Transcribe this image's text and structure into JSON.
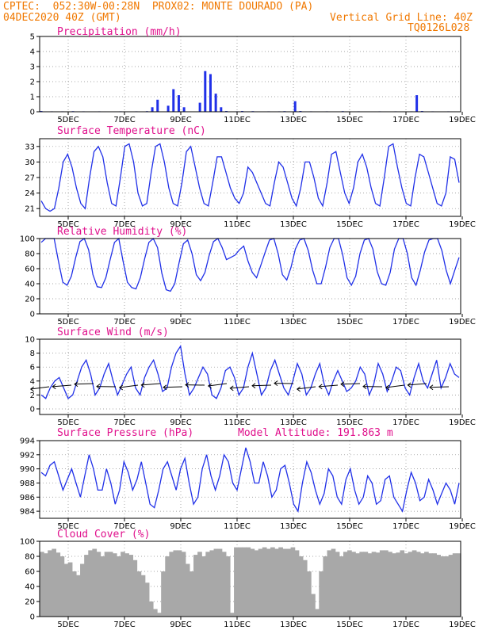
{
  "header": {
    "line1": "CPTEC:  052:30W-00:28N  PROX02: MONTE DOURADO (PA)",
    "line2_left": "04DEC2020 40Z (GMT)",
    "line2_right": "Vertical Grid Line: 40Z",
    "line3_right": "TQ0126L028"
  },
  "colors": {
    "header": "#f07800",
    "title": "#e0108c",
    "line": "#2030e8",
    "cloud": "#a8a8a8"
  },
  "x_axis": {
    "labels": [
      "5DEC",
      "7DEC",
      "9DEC",
      "11DEC",
      "13DEC",
      "15DEC",
      "17DEC",
      "19DEC"
    ]
  },
  "chart_data": [
    {
      "type": "bar",
      "title": "Precipitation (mm/h)",
      "ylim": [
        0,
        5
      ],
      "yticks": [
        0,
        1,
        2,
        3,
        4,
        5
      ],
      "series": [
        {
          "values": [
            0.05,
            0.02,
            0.03,
            0.02,
            0.03,
            0.02,
            0.04,
            0.02,
            0.03,
            0.02,
            0.02,
            0.03,
            0.02,
            0.02,
            0.02,
            0.03,
            0.02,
            0.02,
            0.03,
            0.02,
            0.04,
            0.3,
            0.8,
            0.02,
            0.4,
            1.5,
            1.1,
            0.3,
            0.02,
            0.02,
            0.6,
            2.7,
            2.5,
            1.2,
            0.3,
            0.05,
            0.02,
            0.03,
            0.05,
            0.02,
            0.04,
            0.02,
            0.02,
            0.03,
            0.02,
            0.03,
            0.04,
            0.02,
            0.7,
            0.05,
            0.02,
            0.03,
            0.02,
            0.02,
            0.03,
            0.02,
            0.02,
            0.04,
            0.02,
            0.02,
            0.03,
            0.02,
            0.02,
            0.02,
            0.03,
            0.02,
            0.02,
            0.03,
            0.02,
            0.02,
            0.03,
            1.1,
            0.05,
            0.02,
            0.03,
            0.02,
            0.02,
            0.03,
            0.02,
            0.02
          ]
        }
      ]
    },
    {
      "type": "line",
      "title": "Surface Temperature (nC)",
      "ylim": [
        19.5,
        34.5
      ],
      "yticks": [
        21,
        24,
        27,
        30,
        33
      ],
      "series": [
        {
          "values": [
            22.5,
            21,
            20.5,
            21,
            25,
            30,
            31.5,
            29,
            25,
            22,
            21,
            27,
            32,
            33,
            31,
            26,
            22,
            21.5,
            27,
            33,
            33.5,
            30,
            24,
            21.5,
            22,
            28,
            33,
            33.5,
            30,
            25,
            22,
            21.5,
            26,
            32,
            33,
            29,
            25,
            22,
            21.5,
            26,
            31,
            31,
            28,
            25,
            23,
            22,
            24,
            29,
            28,
            26,
            24,
            22,
            21.5,
            26,
            30,
            29,
            26,
            23,
            21.5,
            25,
            30,
            30,
            27,
            23,
            21.5,
            26,
            31.5,
            32,
            28,
            24,
            22,
            25,
            30,
            31.5,
            29,
            25,
            22,
            21.5,
            27,
            33,
            33.5,
            29,
            25,
            22,
            21.5,
            27,
            31.5,
            31,
            28,
            25,
            22,
            21.5,
            24,
            31,
            30.5,
            26
          ]
        }
      ]
    },
    {
      "type": "line",
      "title": "Relative Humidity (%)",
      "ylim": [
        0,
        100
      ],
      "yticks": [
        0,
        20,
        40,
        60,
        80,
        100
      ],
      "series": [
        {
          "values": [
            95,
            100,
            100,
            100,
            70,
            42,
            38,
            50,
            75,
            96,
            100,
            85,
            52,
            36,
            35,
            48,
            72,
            95,
            100,
            70,
            42,
            35,
            33,
            48,
            73,
            95,
            100,
            88,
            54,
            32,
            30,
            40,
            68,
            93,
            98,
            80,
            52,
            44,
            55,
            78,
            96,
            100,
            88,
            72,
            75,
            78,
            85,
            90,
            70,
            55,
            48,
            65,
            82,
            98,
            100,
            80,
            52,
            45,
            62,
            86,
            98,
            100,
            84,
            58,
            40,
            40,
            62,
            88,
            100,
            100,
            78,
            48,
            38,
            50,
            80,
            98,
            100,
            86,
            56,
            40,
            38,
            55,
            86,
            100,
            100,
            80,
            48,
            38,
            58,
            82,
            98,
            100,
            100,
            84,
            58,
            40,
            58,
            75
          ]
        }
      ]
    },
    {
      "type": "line",
      "title": "Surface Wind (m/s)",
      "ylim": [
        -0.8,
        10
      ],
      "yticks": [
        0,
        2,
        4,
        6,
        8,
        10
      ],
      "series": [
        {
          "values": [
            2,
            1.5,
            3,
            4,
            4.5,
            3,
            1.5,
            2,
            4,
            6,
            7,
            5,
            2,
            3,
            5,
            6.5,
            4,
            2,
            3.5,
            5,
            6,
            3,
            2,
            4.5,
            6,
            7,
            5,
            2.5,
            3,
            6,
            8,
            9,
            5,
            2,
            3,
            4.5,
            6,
            5,
            2,
            1.5,
            3,
            5.5,
            6,
            4.5,
            2,
            3,
            6,
            8,
            5,
            2,
            3,
            5.5,
            7,
            5,
            3,
            2,
            4,
            6.5,
            5,
            2,
            3,
            5,
            6.5,
            3.5,
            2,
            4,
            5.5,
            4,
            2.5,
            3,
            4,
            6,
            5,
            2,
            3.5,
            6.5,
            5,
            2.5,
            4,
            6,
            5.5,
            3,
            2,
            4.5,
            6.5,
            4,
            3,
            5,
            7,
            3,
            4.5,
            6.5,
            5,
            4.5
          ]
        }
      ]
    },
    {
      "type": "line",
      "title": "Surface Pressure (hPa)",
      "subtitle": "Model Altitude: 191.863 m",
      "ylim": [
        983,
        994
      ],
      "yticks": [
        984,
        986,
        988,
        990,
        992,
        994
      ],
      "series": [
        {
          "values": [
            989.5,
            989,
            990.5,
            991,
            989,
            987,
            988.5,
            990,
            988,
            986,
            989,
            992,
            990,
            987,
            987,
            990,
            988,
            985,
            987,
            991,
            989.5,
            987,
            988.5,
            991,
            988,
            985,
            984.5,
            987,
            990,
            991,
            989,
            987,
            990,
            991.5,
            988,
            985,
            986,
            990,
            992,
            989,
            987,
            989,
            992,
            991,
            988,
            987,
            990,
            993,
            991,
            988,
            988,
            991,
            989,
            986,
            987,
            990,
            990.5,
            988,
            985,
            984,
            988,
            991,
            989.5,
            987,
            985,
            986.5,
            990,
            989,
            986,
            985,
            988.5,
            990,
            987,
            985,
            986,
            989,
            988,
            985,
            985.5,
            988.5,
            989,
            986,
            985,
            984,
            987,
            989.5,
            988,
            985.5,
            986,
            988.5,
            987,
            985,
            986.5,
            988,
            987,
            985,
            988
          ]
        }
      ]
    },
    {
      "type": "area",
      "title": "Cloud Cover (%)",
      "ylim": [
        0,
        100
      ],
      "yticks": [
        0,
        20,
        40,
        60,
        80,
        100
      ],
      "series": [
        {
          "values": [
            86,
            84,
            88,
            90,
            85,
            80,
            70,
            72,
            60,
            55,
            70,
            82,
            88,
            90,
            86,
            80,
            86,
            86,
            84,
            80,
            86,
            84,
            82,
            75,
            60,
            55,
            45,
            20,
            10,
            5,
            60,
            80,
            86,
            88,
            88,
            86,
            70,
            60,
            82,
            86,
            80,
            86,
            88,
            90,
            90,
            86,
            80,
            5,
            92,
            92,
            92,
            92,
            90,
            88,
            90,
            92,
            90,
            92,
            90,
            92,
            90,
            90,
            92,
            88,
            80,
            75,
            60,
            30,
            10,
            60,
            80,
            88,
            90,
            86,
            80,
            86,
            88,
            86,
            84,
            86,
            86,
            84,
            86,
            85,
            88,
            88,
            86,
            84,
            85,
            88,
            84,
            86,
            88,
            86,
            84,
            86,
            84,
            84,
            82,
            80,
            80,
            82,
            84,
            84
          ]
        }
      ]
    }
  ]
}
